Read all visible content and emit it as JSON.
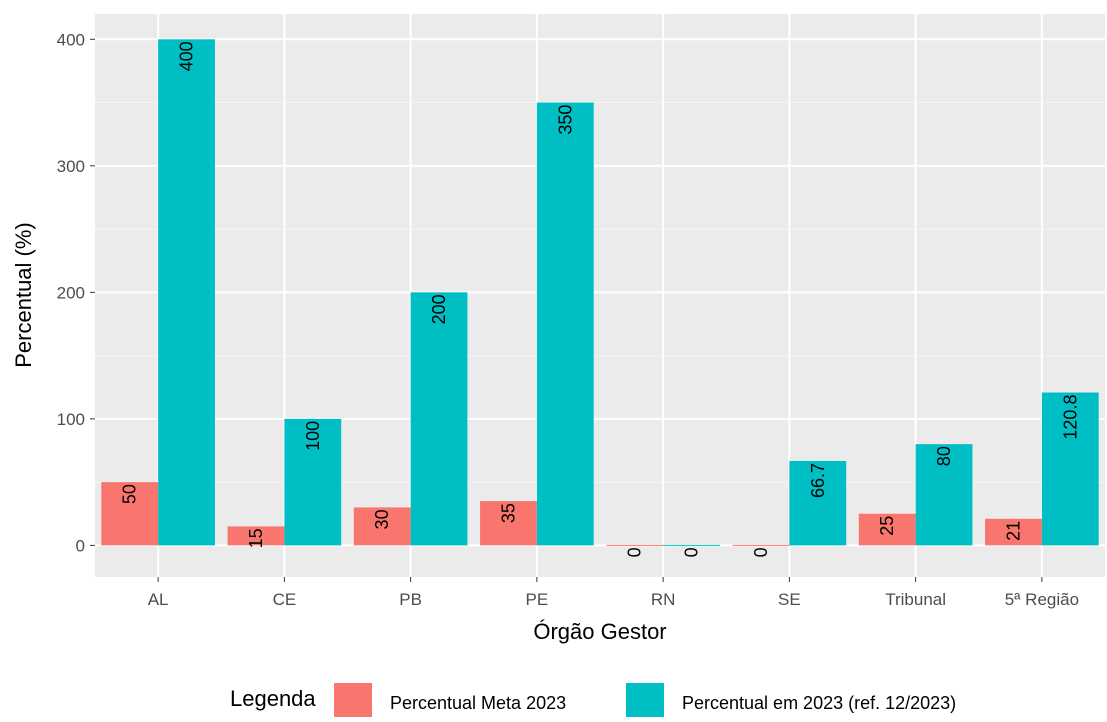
{
  "chart_data": {
    "type": "bar",
    "title": "",
    "xlabel": "Órgão Gestor",
    "ylabel": "Percentual (%)",
    "categories": [
      "AL",
      "CE",
      "PB",
      "PE",
      "RN",
      "SE",
      "Tribunal",
      "5ª Região"
    ],
    "series": [
      {
        "name": "Percentual Meta 2023",
        "color": "#F8766D",
        "values": [
          50,
          15,
          30,
          35,
          0,
          0,
          25,
          21
        ],
        "labels": [
          "50",
          "15",
          "30",
          "35",
          "0",
          "0",
          "25",
          "21"
        ]
      },
      {
        "name": "Percentual em 2023 (ref. 12/2023)",
        "color": "#00BFC4",
        "values": [
          400,
          100,
          200,
          350,
          0,
          66.7,
          80,
          120.8
        ],
        "labels": [
          "400",
          "100",
          "200",
          "350",
          "0",
          "66.7",
          "80",
          "120.8"
        ]
      }
    ],
    "ylim": [
      -25,
      420
    ],
    "yticks": [
      0,
      100,
      200,
      300,
      400
    ],
    "grid": true,
    "legend": {
      "title": "Legenda",
      "position": "bottom"
    }
  }
}
